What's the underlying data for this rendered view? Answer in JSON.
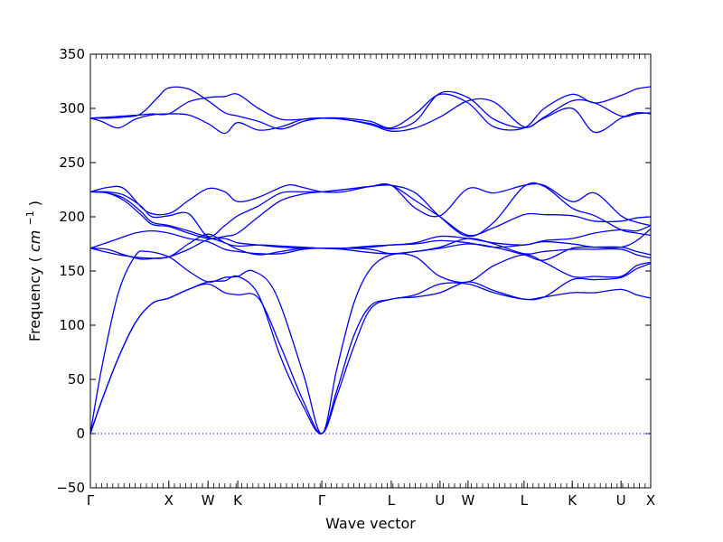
{
  "chart_data": {
    "type": "line",
    "title": "",
    "xlabel": "Wave vector",
    "ylabel": "Frequency",
    "ylabel_unit": "cm",
    "ylabel_unit_exp": "−1",
    "ylim": [
      -50,
      350
    ],
    "yticks": [
      -50,
      0,
      50,
      100,
      150,
      200,
      250,
      300,
      350
    ],
    "ytick_labels": [
      "−50",
      "0",
      "50",
      "100",
      "150",
      "200",
      "250",
      "300",
      "350"
    ],
    "x_points": [
      {
        "label": "Γ",
        "x": 0.0
      },
      {
        "label": "X",
        "x": 0.14
      },
      {
        "label": "W",
        "x": 0.21
      },
      {
        "label": "K",
        "x": 0.263
      },
      {
        "label": "Γ",
        "x": 0.413
      },
      {
        "label": "L",
        "x": 0.537
      },
      {
        "label": "U",
        "x": 0.624
      },
      {
        "label": "W",
        "x": 0.674
      },
      {
        "label": "L",
        "x": 0.774
      },
      {
        "label": "K",
        "x": 0.86
      },
      {
        "label": "U",
        "x": 0.947
      },
      {
        "label": "X",
        "x": 1.0
      }
    ],
    "zero_line": {
      "y": 0,
      "style": "dotted"
    },
    "line_color": "#0000ff",
    "series": [
      {
        "x": [
          0,
          0.02,
          0.05,
          0.08,
          0.11,
          0.14,
          0.175,
          0.21,
          0.24,
          0.263,
          0.3,
          0.34,
          0.38,
          0.413,
          0.44,
          0.47,
          0.5,
          0.537,
          0.58,
          0.624,
          0.674,
          0.72,
          0.774,
          0.81,
          0.86,
          0.9,
          0.947,
          0.975,
          1
        ],
        "values": [
          0,
          30,
          70,
          102,
          120,
          125,
          133,
          140,
          141,
          145,
          128,
          70,
          25,
          0,
          40,
          90,
          118,
          124,
          128,
          138,
          138,
          130,
          124,
          126,
          142,
          142,
          144,
          152,
          157
        ]
      },
      {
        "x": [
          0,
          0.02,
          0.05,
          0.08,
          0.11,
          0.14,
          0.175,
          0.21,
          0.24,
          0.263,
          0.3,
          0.34,
          0.38,
          0.413,
          0.44,
          0.47,
          0.5,
          0.537,
          0.58,
          0.624,
          0.674,
          0.72,
          0.774,
          0.81,
          0.86,
          0.9,
          0.947,
          0.975,
          1
        ],
        "values": [
          0,
          30,
          70,
          102,
          120,
          125,
          133,
          138,
          130,
          128,
          125,
          80,
          30,
          0,
          35,
          80,
          115,
          124,
          126,
          130,
          140,
          132,
          124,
          126,
          130,
          130,
          133,
          128,
          125
        ]
      },
      {
        "x": [
          0,
          0.02,
          0.05,
          0.08,
          0.1,
          0.14,
          0.175,
          0.21,
          0.24,
          0.263,
          0.29,
          0.33,
          0.38,
          0.413,
          0.44,
          0.47,
          0.5,
          0.537,
          0.58,
          0.624,
          0.674,
          0.72,
          0.774,
          0.81,
          0.86,
          0.9,
          0.947,
          0.975,
          1
        ],
        "values": [
          0,
          60,
          130,
          164,
          168,
          163,
          150,
          140,
          144,
          145,
          150,
          130,
          55,
          0,
          60,
          120,
          152,
          165,
          163,
          145,
          140,
          155,
          165,
          158,
          145,
          145,
          145,
          155,
          158
        ]
      },
      {
        "x": [
          0,
          0.03,
          0.06,
          0.09,
          0.12,
          0.14,
          0.175,
          0.21,
          0.24,
          0.263,
          0.3,
          0.34,
          0.38,
          0.413,
          0.45,
          0.5,
          0.537,
          0.58,
          0.624,
          0.674,
          0.72,
          0.774,
          0.81,
          0.86,
          0.9,
          0.947,
          0.975,
          1
        ],
        "values": [
          171,
          170,
          165,
          161,
          162,
          163,
          170,
          179,
          180,
          176,
          174,
          172,
          171,
          171,
          170,
          167,
          166,
          168,
          171,
          175,
          172,
          165,
          160,
          171,
          172,
          172,
          168,
          165
        ]
      },
      {
        "x": [
          0,
          0.04,
          0.08,
          0.11,
          0.14,
          0.175,
          0.21,
          0.24,
          0.263,
          0.3,
          0.34,
          0.38,
          0.413,
          0.45,
          0.5,
          0.537,
          0.58,
          0.624,
          0.674,
          0.72,
          0.774,
          0.81,
          0.86,
          0.9,
          0.947,
          0.975,
          1
        ],
        "values": [
          171,
          178,
          185,
          187,
          185,
          180,
          177,
          170,
          168,
          166,
          166,
          170,
          171,
          171,
          170,
          166,
          168,
          172,
          180,
          175,
          166,
          168,
          170,
          170,
          170,
          165,
          162
        ]
      },
      {
        "x": [
          0,
          0.05,
          0.1,
          0.14,
          0.175,
          0.21,
          0.24,
          0.263,
          0.3,
          0.34,
          0.38,
          0.413,
          0.45,
          0.5,
          0.537,
          0.58,
          0.624,
          0.674,
          0.72,
          0.774,
          0.81,
          0.86,
          0.9,
          0.947,
          0.975,
          1
        ],
        "values": [
          171,
          165,
          162,
          163,
          175,
          184,
          176,
          173,
          174,
          173,
          172,
          171,
          171,
          172,
          174,
          175,
          178,
          176,
          172,
          174,
          177,
          175,
          172,
          172,
          178,
          189
        ]
      },
      {
        "x": [
          0,
          0.03,
          0.06,
          0.09,
          0.11,
          0.14,
          0.175,
          0.21,
          0.24,
          0.263,
          0.3,
          0.34,
          0.38,
          0.413,
          0.45,
          0.5,
          0.537,
          0.58,
          0.624,
          0.674,
          0.72,
          0.774,
          0.81,
          0.86,
          0.9,
          0.947,
          0.975,
          1
        ],
        "values": [
          223,
          222,
          217,
          205,
          195,
          192,
          187,
          181,
          176,
          170,
          165,
          168,
          171,
          171,
          171,
          173,
          174,
          176,
          182,
          180,
          176,
          174,
          178,
          180,
          185,
          188,
          187,
          192
        ]
      },
      {
        "x": [
          0,
          0.03,
          0.06,
          0.09,
          0.11,
          0.14,
          0.175,
          0.21,
          0.24,
          0.263,
          0.3,
          0.34,
          0.38,
          0.413,
          0.45,
          0.5,
          0.537,
          0.58,
          0.624,
          0.674,
          0.72,
          0.774,
          0.81,
          0.86,
          0.9,
          0.947,
          0.975,
          1
        ],
        "values": [
          223,
          222,
          215,
          202,
          193,
          191,
          185,
          180,
          182,
          185,
          200,
          215,
          221,
          223,
          225,
          228,
          229,
          215,
          200,
          183,
          190,
          202,
          202,
          201,
          196,
          196,
          199,
          200
        ]
      },
      {
        "x": [
          0,
          0.03,
          0.06,
          0.09,
          0.11,
          0.14,
          0.175,
          0.21,
          0.24,
          0.263,
          0.3,
          0.34,
          0.38,
          0.413,
          0.45,
          0.5,
          0.537,
          0.58,
          0.624,
          0.674,
          0.72,
          0.774,
          0.81,
          0.86,
          0.9,
          0.947,
          0.975,
          1
        ],
        "values": [
          223,
          223,
          220,
          210,
          200,
          201,
          203,
          182,
          192,
          201,
          210,
          222,
          223,
          223,
          225,
          228,
          229,
          222,
          200,
          182,
          195,
          228,
          228,
          208,
          201,
          188,
          185,
          183
        ]
      },
      {
        "x": [
          0,
          0.03,
          0.06,
          0.1,
          0.14,
          0.175,
          0.21,
          0.24,
          0.263,
          0.3,
          0.35,
          0.38,
          0.413,
          0.45,
          0.5,
          0.537,
          0.58,
          0.624,
          0.674,
          0.72,
          0.774,
          0.81,
          0.86,
          0.9,
          0.947,
          0.975,
          1
        ],
        "values": [
          223,
          227,
          226,
          205,
          203,
          215,
          226,
          223,
          214,
          218,
          229,
          227,
          223,
          223,
          228,
          229,
          208,
          201,
          226,
          222,
          229,
          229,
          214,
          222,
          201,
          195,
          192
        ]
      },
      {
        "x": [
          0,
          0.02,
          0.05,
          0.08,
          0.11,
          0.14,
          0.175,
          0.21,
          0.24,
          0.263,
          0.3,
          0.34,
          0.38,
          0.413,
          0.45,
          0.5,
          0.537,
          0.58,
          0.624,
          0.674,
          0.72,
          0.774,
          0.81,
          0.86,
          0.9,
          0.947,
          0.975,
          1
        ],
        "values": [
          291,
          288,
          282,
          290,
          294,
          295,
          294,
          286,
          277,
          287,
          280,
          283,
          290,
          291,
          290,
          286,
          281,
          288,
          314,
          310,
          290,
          282,
          291,
          300,
          278,
          291,
          296,
          295
        ]
      },
      {
        "x": [
          0,
          0.03,
          0.06,
          0.09,
          0.11,
          0.14,
          0.175,
          0.21,
          0.24,
          0.263,
          0.3,
          0.34,
          0.38,
          0.413,
          0.45,
          0.5,
          0.537,
          0.58,
          0.624,
          0.674,
          0.72,
          0.774,
          0.81,
          0.86,
          0.9,
          0.947,
          0.975,
          1
        ],
        "values": [
          291,
          292,
          293,
          294,
          295,
          295,
          306,
          310,
          311,
          313,
          300,
          290,
          290,
          291,
          290,
          285,
          279,
          282,
          292,
          307,
          306,
          283,
          292,
          307,
          305,
          293,
          295,
          296
        ]
      },
      {
        "x": [
          0,
          0.03,
          0.06,
          0.09,
          0.12,
          0.14,
          0.175,
          0.21,
          0.24,
          0.263,
          0.3,
          0.34,
          0.38,
          0.413,
          0.45,
          0.5,
          0.537,
          0.58,
          0.624,
          0.674,
          0.72,
          0.774,
          0.81,
          0.86,
          0.9,
          0.947,
          0.975,
          1
        ],
        "values": [
          291,
          291,
          292,
          295,
          310,
          319,
          318,
          307,
          296,
          293,
          288,
          281,
          288,
          291,
          291,
          288,
          282,
          295,
          313,
          305,
          283,
          282,
          300,
          313,
          305,
          312,
          318,
          320
        ]
      }
    ]
  }
}
